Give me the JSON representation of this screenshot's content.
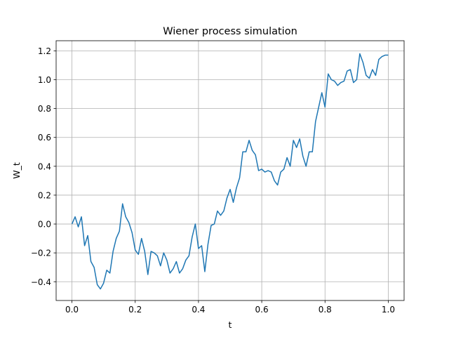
{
  "chart_data": {
    "type": "line",
    "title": "Wiener process simulation",
    "xlabel": "t",
    "ylabel": "W_t",
    "xlim": [
      -0.05,
      1.05
    ],
    "ylim": [
      -0.53,
      1.27
    ],
    "xticks": [
      0.0,
      0.2,
      0.4,
      0.6,
      0.8,
      1.0
    ],
    "xtick_labels": [
      "0.0",
      "0.2",
      "0.4",
      "0.6",
      "0.8",
      "1.0"
    ],
    "yticks": [
      -0.4,
      -0.2,
      0.0,
      0.2,
      0.4,
      0.6,
      0.8,
      1.0,
      1.2
    ],
    "ytick_labels": [
      "−0.4",
      "−0.2",
      "0.0",
      "0.2",
      "0.4",
      "0.6",
      "0.8",
      "1.0",
      "1.2"
    ],
    "grid": true,
    "series": [
      {
        "color": "#1f77b4",
        "x": [
          0.0,
          0.01,
          0.02,
          0.03,
          0.04,
          0.05,
          0.06,
          0.07,
          0.08,
          0.09,
          0.1,
          0.11,
          0.12,
          0.13,
          0.14,
          0.15,
          0.16,
          0.17,
          0.18,
          0.19,
          0.2,
          0.21,
          0.22,
          0.23,
          0.24,
          0.25,
          0.26,
          0.27,
          0.28,
          0.29,
          0.3,
          0.31,
          0.32,
          0.33,
          0.34,
          0.35,
          0.36,
          0.37,
          0.38,
          0.39,
          0.4,
          0.41,
          0.42,
          0.43,
          0.44,
          0.45,
          0.46,
          0.47,
          0.48,
          0.49,
          0.5,
          0.51,
          0.52,
          0.53,
          0.54,
          0.55,
          0.56,
          0.57,
          0.58,
          0.59,
          0.6,
          0.61,
          0.62,
          0.63,
          0.64,
          0.65,
          0.66,
          0.67,
          0.68,
          0.69,
          0.7,
          0.71,
          0.72,
          0.73,
          0.74,
          0.75,
          0.76,
          0.77,
          0.78,
          0.79,
          0.8,
          0.81,
          0.82,
          0.83,
          0.84,
          0.85,
          0.86,
          0.87,
          0.88,
          0.89,
          0.9,
          0.91,
          0.92,
          0.93,
          0.94,
          0.95,
          0.96,
          0.97,
          0.98,
          0.99,
          1.0
        ],
        "y": [
          0.0,
          0.05,
          -0.02,
          0.05,
          -0.15,
          -0.08,
          -0.26,
          -0.3,
          -0.42,
          -0.45,
          -0.41,
          -0.32,
          -0.34,
          -0.19,
          -0.1,
          -0.05,
          0.14,
          0.05,
          0.01,
          -0.06,
          -0.18,
          -0.21,
          -0.1,
          -0.19,
          -0.35,
          -0.19,
          -0.2,
          -0.22,
          -0.29,
          -0.2,
          -0.25,
          -0.34,
          -0.31,
          -0.26,
          -0.34,
          -0.31,
          -0.25,
          -0.22,
          -0.09,
          0.0,
          -0.17,
          -0.15,
          -0.33,
          -0.14,
          -0.01,
          0.0,
          0.09,
          0.06,
          0.09,
          0.18,
          0.24,
          0.15,
          0.25,
          0.32,
          0.5,
          0.5,
          0.58,
          0.51,
          0.48,
          0.37,
          0.38,
          0.36,
          0.37,
          0.36,
          0.3,
          0.27,
          0.36,
          0.38,
          0.46,
          0.4,
          0.58,
          0.53,
          0.59,
          0.47,
          0.4,
          0.5,
          0.5,
          0.71,
          0.81,
          0.91,
          0.81,
          1.04,
          1.0,
          0.99,
          0.96,
          0.98,
          0.99,
          1.06,
          1.07,
          0.98,
          1.0,
          1.18,
          1.12,
          1.03,
          1.01,
          1.07,
          1.03,
          1.14,
          1.16,
          1.17,
          1.17
        ]
      }
    ]
  }
}
